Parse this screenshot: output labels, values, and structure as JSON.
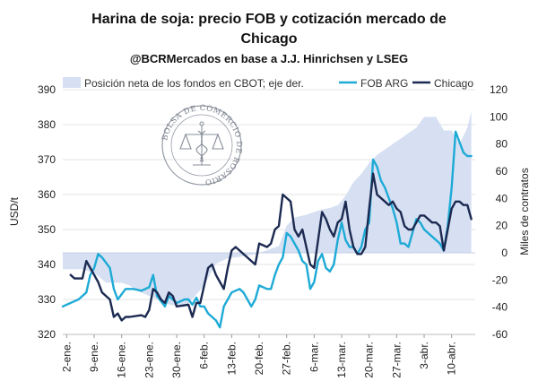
{
  "header": {
    "title_line1": "Harina de soja: precio FOB y cotización mercado de",
    "title_line2": "Chicago",
    "subtitle": "@BCRMercados en base a J.J. Hinrichsen y LSEG"
  },
  "logo": {
    "text": "BOLSA DE COMERCIO DE ROSARIO"
  },
  "chart_data": {
    "type": "line",
    "title": "Harina de soja: precio FOB y cotización mercado de Chicago",
    "subtitle": "@BCRMercados en base a J.J. Hinrichsen y LSEG",
    "ylabel": "USD/t",
    "y2label": "Miles de contratos",
    "ylim": [
      320,
      390
    ],
    "y_ticks": [
      320,
      330,
      340,
      350,
      360,
      370,
      380,
      390
    ],
    "y2lim": [
      -60,
      120
    ],
    "y2_ticks": [
      -60,
      -40,
      -20,
      0,
      20,
      40,
      60,
      80,
      100,
      120
    ],
    "x_range": [
      0,
      105
    ],
    "x_ticks": [
      {
        "x": 1,
        "label": "2-ene."
      },
      {
        "x": 8,
        "label": "9-ene."
      },
      {
        "x": 15,
        "label": "16-ene."
      },
      {
        "x": 22,
        "label": "23-ene."
      },
      {
        "x": 29,
        "label": "30-ene."
      },
      {
        "x": 36,
        "label": "6-feb."
      },
      {
        "x": 43,
        "label": "13-feb."
      },
      {
        "x": 50,
        "label": "20-feb."
      },
      {
        "x": 57,
        "label": "27-feb."
      },
      {
        "x": 64,
        "label": "6-mar."
      },
      {
        "x": 71,
        "label": "13-mar."
      },
      {
        "x": 78,
        "label": "20-mar."
      },
      {
        "x": 85,
        "label": "27-mar."
      },
      {
        "x": 92,
        "label": "3-abr."
      },
      {
        "x": 99,
        "label": "10-abr."
      }
    ],
    "grid": true,
    "legend": "top",
    "series": [
      {
        "name": "Posición neta de los fondos en CBOT; eje der.",
        "kind": "area",
        "axis": "right",
        "color": "#d6e0f2",
        "points": [
          [
            0,
            -12
          ],
          [
            5,
            -12
          ],
          [
            7,
            -14
          ],
          [
            9,
            -17
          ],
          [
            11,
            -22
          ],
          [
            15,
            -22
          ],
          [
            17,
            -24
          ],
          [
            19,
            -28
          ],
          [
            23,
            -33
          ],
          [
            27,
            -38
          ],
          [
            31,
            -40
          ],
          [
            33,
            -34
          ],
          [
            36,
            -24
          ],
          [
            39,
            -8
          ],
          [
            42,
            -4
          ],
          [
            45,
            -3
          ],
          [
            49,
            -1
          ],
          [
            52,
            2
          ],
          [
            55,
            5
          ],
          [
            57,
            20
          ],
          [
            59,
            26
          ],
          [
            62,
            28
          ],
          [
            64,
            30
          ],
          [
            66,
            32
          ],
          [
            68,
            33
          ],
          [
            70,
            35
          ],
          [
            72,
            42
          ],
          [
            74,
            52
          ],
          [
            76,
            58
          ],
          [
            78,
            66
          ],
          [
            80,
            72
          ],
          [
            82,
            76
          ],
          [
            84,
            80
          ],
          [
            86,
            84
          ],
          [
            88,
            88
          ],
          [
            90,
            92
          ],
          [
            92,
            100
          ],
          [
            95,
            100
          ],
          [
            97,
            90
          ],
          [
            99,
            90
          ],
          [
            101,
            80
          ],
          [
            103,
            92
          ],
          [
            104,
            104
          ]
        ]
      },
      {
        "name": "FOB ARG",
        "kind": "line",
        "axis": "left",
        "color": "#1eaad6",
        "points": [
          [
            0,
            328
          ],
          [
            3,
            329.5
          ],
          [
            4,
            330
          ],
          [
            5,
            331
          ],
          [
            6,
            332
          ],
          [
            7,
            337
          ],
          [
            8,
            339
          ],
          [
            9,
            343
          ],
          [
            10,
            342
          ],
          [
            12,
            339
          ],
          [
            13,
            333
          ],
          [
            14,
            330
          ],
          [
            16,
            333
          ],
          [
            18,
            333
          ],
          [
            20,
            332.5
          ],
          [
            22,
            333.5
          ],
          [
            23,
            337
          ],
          [
            24,
            331
          ],
          [
            26,
            328
          ],
          [
            27,
            331
          ],
          [
            29,
            329
          ],
          [
            31,
            330
          ],
          [
            32,
            330
          ],
          [
            33,
            328.5
          ],
          [
            34,
            330.5
          ],
          [
            35,
            328
          ],
          [
            36,
            328
          ],
          [
            37,
            326
          ],
          [
            38,
            325
          ],
          [
            39,
            324
          ],
          [
            40,
            322
          ],
          [
            41,
            328
          ],
          [
            42,
            330
          ],
          [
            43,
            332
          ],
          [
            45,
            333
          ],
          [
            46,
            332
          ],
          [
            47,
            330
          ],
          [
            48,
            328
          ],
          [
            49,
            330
          ],
          [
            50,
            334
          ],
          [
            52,
            333
          ],
          [
            53,
            333
          ],
          [
            54,
            337
          ],
          [
            55,
            340
          ],
          [
            56,
            342
          ],
          [
            57,
            349
          ],
          [
            58,
            348
          ],
          [
            59,
            346
          ],
          [
            60,
            344
          ],
          [
            61,
            341
          ],
          [
            62,
            340
          ],
          [
            63,
            333
          ],
          [
            64,
            335
          ],
          [
            65,
            341
          ],
          [
            66,
            343
          ],
          [
            67,
            339
          ],
          [
            68,
            338
          ],
          [
            69,
            340
          ],
          [
            70,
            347
          ],
          [
            71,
            352
          ],
          [
            72,
            347
          ],
          [
            73,
            345
          ],
          [
            74,
            345
          ],
          [
            75,
            343
          ],
          [
            76,
            345
          ],
          [
            77,
            350
          ],
          [
            78,
            352
          ],
          [
            79,
            370
          ],
          [
            80,
            368
          ],
          [
            81,
            364
          ],
          [
            82,
            362
          ],
          [
            83,
            359
          ],
          [
            84,
            356
          ],
          [
            85,
            352
          ],
          [
            86,
            346
          ],
          [
            87,
            346
          ],
          [
            88,
            345
          ],
          [
            89,
            349
          ],
          [
            90,
            353
          ],
          [
            91,
            352
          ],
          [
            92,
            350
          ],
          [
            93,
            349
          ],
          [
            94,
            348
          ],
          [
            95,
            347
          ],
          [
            96,
            346
          ],
          [
            97,
            344
          ],
          [
            98,
            351
          ],
          [
            99,
            362
          ],
          [
            100,
            378
          ],
          [
            101,
            375
          ],
          [
            102,
            372
          ],
          [
            103,
            371
          ],
          [
            104,
            371
          ]
        ]
      },
      {
        "name": "Chicago",
        "kind": "line",
        "axis": "left",
        "color": "#1c2a52",
        "points": [
          [
            2,
            337
          ],
          [
            3,
            336
          ],
          [
            4,
            336
          ],
          [
            5,
            336
          ],
          [
            6,
            341
          ],
          [
            7,
            339
          ],
          [
            8,
            337
          ],
          [
            9,
            335
          ],
          [
            10,
            332
          ],
          [
            11,
            331
          ],
          [
            12,
            330
          ],
          [
            13,
            325
          ],
          [
            14,
            326
          ],
          [
            15,
            324
          ],
          [
            16,
            325
          ],
          [
            17,
            325
          ],
          [
            20,
            325.5
          ],
          [
            21,
            325
          ],
          [
            22,
            327
          ],
          [
            23,
            333
          ],
          [
            24,
            332
          ],
          [
            25,
            330
          ],
          [
            26,
            329
          ],
          [
            27,
            332
          ],
          [
            28,
            331
          ],
          [
            29,
            328
          ],
          [
            32,
            328.5
          ],
          [
            33,
            325
          ],
          [
            34,
            329
          ],
          [
            35,
            329
          ],
          [
            36,
            334
          ],
          [
            37,
            339
          ],
          [
            38,
            340
          ],
          [
            39,
            337
          ],
          [
            40,
            335
          ],
          [
            41,
            333
          ],
          [
            42,
            339
          ],
          [
            43,
            344
          ],
          [
            44,
            345
          ],
          [
            45,
            344
          ],
          [
            48,
            341
          ],
          [
            49,
            340
          ],
          [
            50,
            346
          ],
          [
            52,
            345
          ],
          [
            53,
            346
          ],
          [
            54,
            350
          ],
          [
            55,
            351
          ],
          [
            56,
            360
          ],
          [
            57,
            359
          ],
          [
            58,
            358
          ],
          [
            59,
            350
          ],
          [
            60,
            348
          ],
          [
            61,
            350
          ],
          [
            62,
            345
          ],
          [
            63,
            340
          ],
          [
            64,
            339
          ],
          [
            65,
            347
          ],
          [
            66,
            355
          ],
          [
            67,
            353
          ],
          [
            68,
            350
          ],
          [
            69,
            348
          ],
          [
            70,
            352
          ],
          [
            71,
            353
          ],
          [
            72,
            358
          ],
          [
            73,
            350
          ],
          [
            74,
            345
          ],
          [
            75,
            343
          ],
          [
            76,
            343
          ],
          [
            77,
            345
          ],
          [
            78,
            356
          ],
          [
            79,
            366
          ],
          [
            80,
            360
          ],
          [
            82,
            358
          ],
          [
            83,
            357
          ],
          [
            84,
            358
          ],
          [
            85,
            356
          ],
          [
            86,
            355
          ],
          [
            87,
            351
          ],
          [
            88,
            350
          ],
          [
            89,
            350
          ],
          [
            90,
            352
          ],
          [
            91,
            354
          ],
          [
            92,
            354
          ],
          [
            94,
            352
          ],
          [
            95,
            352
          ],
          [
            96,
            351
          ],
          [
            97,
            344
          ],
          [
            98,
            350
          ],
          [
            99,
            356
          ],
          [
            100,
            358
          ],
          [
            101,
            358
          ],
          [
            102,
            357
          ],
          [
            103,
            357
          ],
          [
            104,
            353
          ]
        ]
      }
    ]
  }
}
